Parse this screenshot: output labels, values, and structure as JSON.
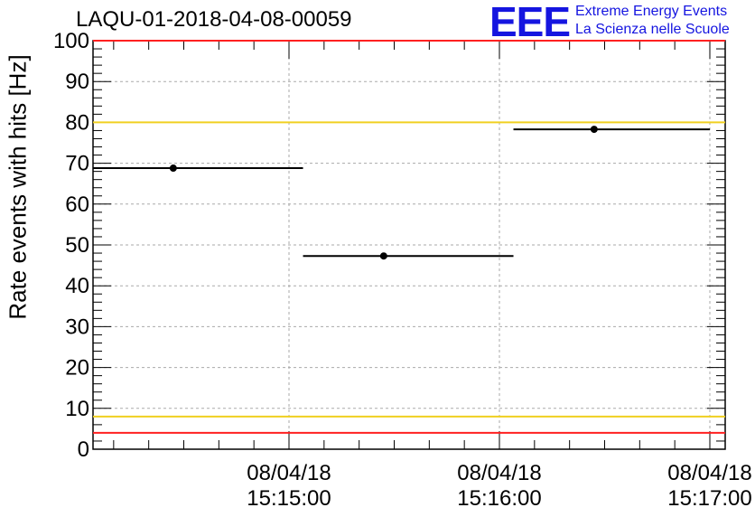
{
  "header": {
    "title": "LAQU-01-2018-04-08-00059",
    "logo_text": "EEE",
    "logo_line1": "Extreme Energy Events",
    "logo_line2": "La Scienza nelle Scuole"
  },
  "colors": {
    "red_limit": "#ff2020",
    "yellow_limit": "#f0d020",
    "points": "#000000",
    "grid": "#aaaaaa",
    "logo": "#1515e0"
  },
  "chart_data": {
    "type": "scatter",
    "title": "LAQU-01-2018-04-08-00059",
    "xlabel": "",
    "ylabel": "Rate events with hits [Hz]",
    "ylim": [
      0,
      100
    ],
    "y_ticks": [
      "0",
      "10",
      "20",
      "30",
      "40",
      "50",
      "60",
      "70",
      "80",
      "90",
      "100"
    ],
    "x_ticks": [
      {
        "date": "08/04/18",
        "time": "15:15:00"
      },
      {
        "date": "08/04/18",
        "time": "15:16:00"
      },
      {
        "date": "08/04/18",
        "time": "15:17:00"
      }
    ],
    "grid": true,
    "points": [
      {
        "x": "15:14:27",
        "x_start": "15:13:57",
        "x_end": "15:15:04",
        "y": 68.8
      },
      {
        "x": "15:15:27",
        "x_start": "15:15:04",
        "x_end": "15:16:04",
        "y": 47.3
      },
      {
        "x": "15:16:27",
        "x_start": "15:16:04",
        "x_end": "15:17:00",
        "y": 78.3
      }
    ],
    "reference_lines": [
      {
        "y": 100,
        "color": "red"
      },
      {
        "y": 80,
        "color": "yellow"
      },
      {
        "y": 8,
        "color": "yellow"
      },
      {
        "y": 4,
        "color": "red"
      }
    ]
  }
}
